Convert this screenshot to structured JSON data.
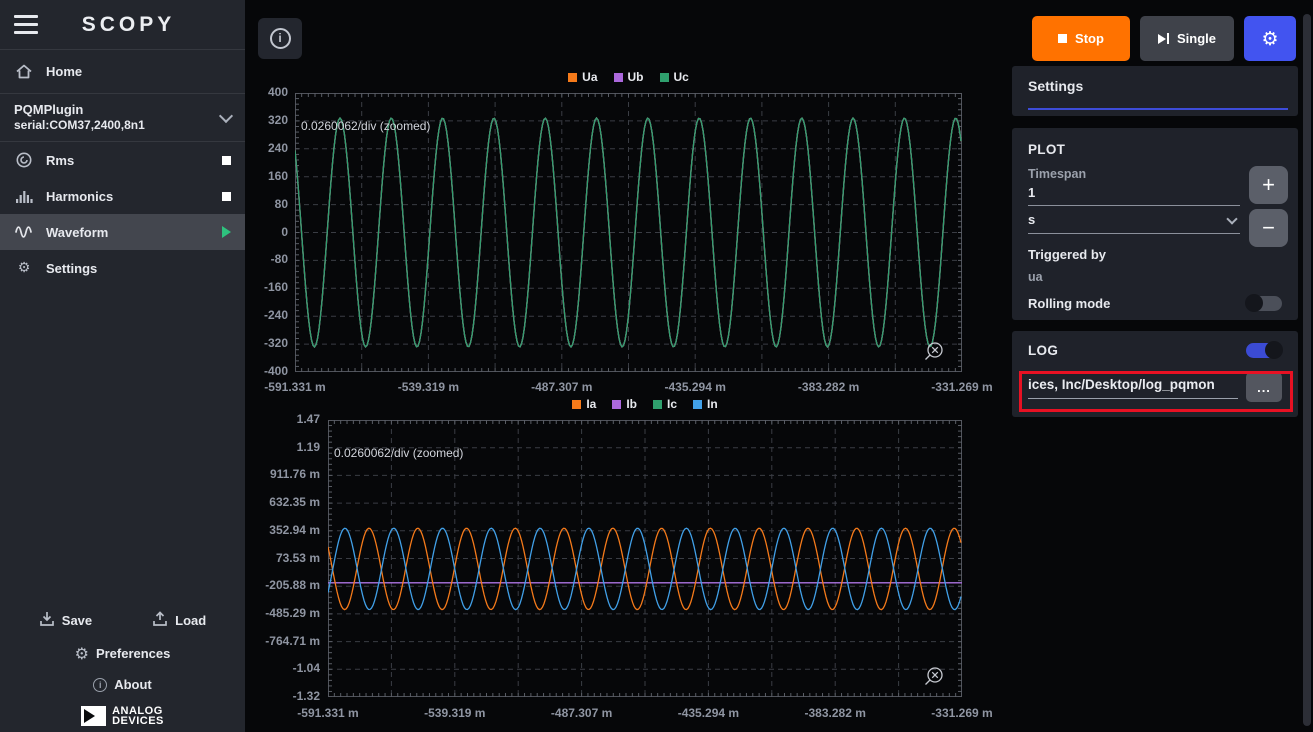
{
  "sidebar": {
    "logo": "SCOPY",
    "home_label": "Home",
    "plugin": {
      "name": "PQMPlugin",
      "serial": "serial:COM37,2400,8n1"
    },
    "tools": [
      {
        "label": "Rms",
        "state": "stopped"
      },
      {
        "label": "Harmonics",
        "state": "stopped"
      },
      {
        "label": "Waveform",
        "state": "running",
        "selected": true
      },
      {
        "label": "Settings"
      }
    ],
    "footer": {
      "save_label": "Save",
      "load_label": "Load",
      "preferences_label": "Preferences",
      "about_label": "About",
      "brand_line1": "ANALOG",
      "brand_line2": "DEVICES"
    }
  },
  "topbar": {
    "stop_label": "Stop",
    "single_label": "Single"
  },
  "settings_panel": {
    "title": "Settings",
    "plot_section": {
      "title": "PLOT",
      "timespan_label": "Timespan",
      "timespan_value": "1",
      "unit_value": "s",
      "triggered_by_label": "Triggered by",
      "triggered_by_value": "ua",
      "rolling_mode_label": "Rolling mode",
      "rolling_mode_on": false
    },
    "log_section": {
      "title": "LOG",
      "enabled": true,
      "path_value": "ices, Inc/Desktop/log_pqmon",
      "browse_label": "..."
    }
  },
  "colors": {
    "accent_blue": "#4254f0",
    "stop_orange": "#ff7200",
    "toggle_on_blue": "#3b4bd4",
    "highlight_red": "#e81123",
    "trace_orange": "#f57a1a",
    "trace_purple": "#ab68dc",
    "trace_green": "#2fa06e",
    "trace_blue": "#41a0e8"
  },
  "chart_data": [
    {
      "id": "voltage-plot",
      "type": "line",
      "annotation": "0.0260062/div (zoomed)",
      "legend": [
        {
          "label": "Ua",
          "color": "#f57a1a"
        },
        {
          "label": "Ub",
          "color": "#ab68dc"
        },
        {
          "label": "Uc",
          "color": "#2fa06e"
        }
      ],
      "y_ticks": [
        "400",
        "320",
        "240",
        "160",
        "80",
        "0",
        "-80",
        "-160",
        "-240",
        "-320",
        "-400"
      ],
      "x_ticks": [
        "-591.331 m",
        "-539.319 m",
        "-487.307 m",
        "-435.294 m",
        "-383.282 m",
        "-331.269 m"
      ],
      "ylim": [
        -400,
        400
      ],
      "x_range_seconds": [
        -0.591331,
        -0.331269
      ],
      "frequency_hz": 50,
      "grid_divisions": [
        10,
        10
      ],
      "series": [
        {
          "name": "Ua",
          "waveform": "sine",
          "amplitude": 328,
          "offset": 0,
          "cycles": 13,
          "peak_frac": 0.0675,
          "color": "#f57a1a"
        },
        {
          "name": "Ub",
          "waveform": "sine",
          "amplitude": 328,
          "offset": 0,
          "cycles": 13,
          "peak_frac": 0.0675,
          "color": "#ab68dc"
        },
        {
          "name": "Uc",
          "waveform": "sine",
          "amplitude": 328,
          "offset": 0,
          "cycles": 13,
          "peak_frac": 0.0675,
          "color": "#2fa06e"
        }
      ]
    },
    {
      "id": "current-plot",
      "type": "line",
      "annotation": "0.0260062/div (zoomed)",
      "legend": [
        {
          "label": "Ia",
          "color": "#f57a1a"
        },
        {
          "label": "Ib",
          "color": "#ab68dc"
        },
        {
          "label": "Ic",
          "color": "#2fa06e"
        },
        {
          "label": "In",
          "color": "#41a0e8"
        }
      ],
      "y_ticks": [
        "1.47",
        "1.19",
        "911.76 m",
        "632.35 m",
        "352.94 m",
        "73.53 m",
        "-205.88 m",
        "-485.29 m",
        "-764.71 m",
        "-1.04",
        "-1.32"
      ],
      "x_ticks": [
        "-591.331 m",
        "-539.319 m",
        "-487.307 m",
        "-435.294 m",
        "-383.282 m",
        "-331.269 m"
      ],
      "ylim": [
        -1.32,
        1.47
      ],
      "x_range_seconds": [
        -0.591331,
        -0.331269
      ],
      "frequency_hz": 50,
      "grid_divisions": [
        10,
        10
      ],
      "series": [
        {
          "name": "Ic",
          "waveform": "flat",
          "value": -0.17,
          "color": "#2fa06e"
        },
        {
          "name": "Ib",
          "waveform": "flat",
          "value": -0.17,
          "color": "#ab68dc"
        },
        {
          "name": "Ia",
          "waveform": "sine",
          "amplitude": 0.41,
          "offset": -0.03,
          "cycles": 13,
          "peak_frac": 0.0647,
          "color": "#f57a1a"
        },
        {
          "name": "In",
          "waveform": "sine",
          "amplitude": 0.41,
          "offset": -0.03,
          "cycles": 13,
          "peak_frac": 0.0268,
          "color": "#41a0e8"
        }
      ]
    }
  ]
}
